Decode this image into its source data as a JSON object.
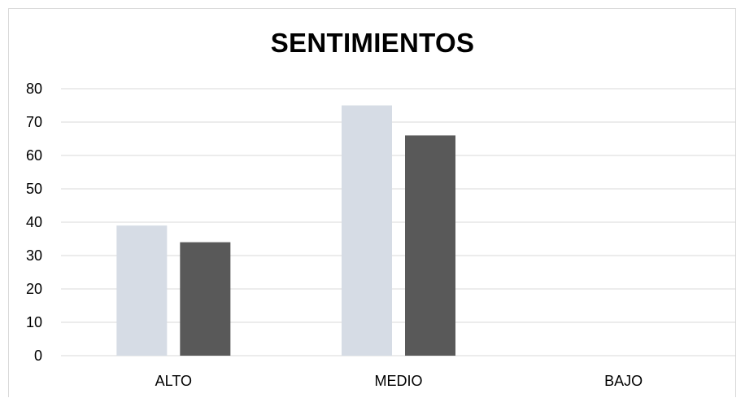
{
  "chart_data": {
    "type": "bar",
    "title": "SENTIMIENTOS",
    "xlabel": "",
    "ylabel": "",
    "categories": [
      "ALTO",
      "MEDIO",
      "BAJO"
    ],
    "series": [
      {
        "values": [
          39,
          75,
          0
        ],
        "color": "#d6dce5"
      },
      {
        "values": [
          34,
          66,
          0
        ],
        "color": "#595959"
      }
    ],
    "ylim": [
      0,
      80
    ],
    "yticks": [
      0,
      10,
      20,
      30,
      40,
      50,
      60,
      70,
      80
    ],
    "grid": true,
    "legend": "none"
  }
}
